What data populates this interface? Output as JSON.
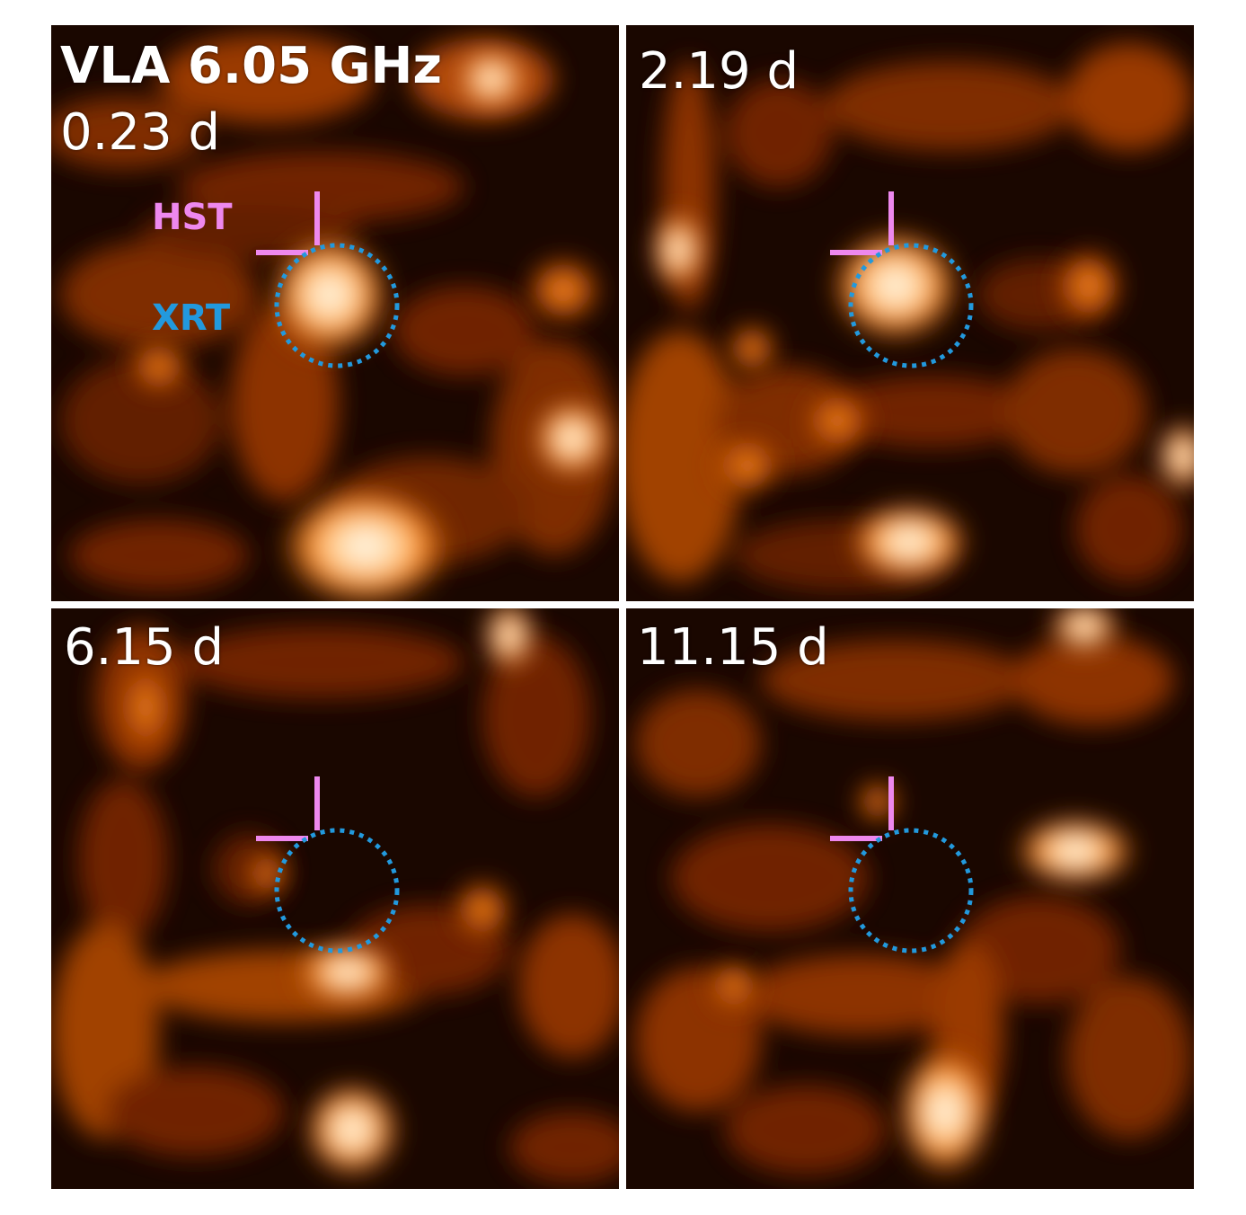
{
  "figure": {
    "instrument_label": "VLA 6.05 GHz",
    "marker_labels": {
      "hst": "HST",
      "xrt": "XRT"
    },
    "colors": {
      "hst": "#ee88ee",
      "xrt": "#2299dd",
      "text": "#ffffff",
      "divider": "#ffffff"
    },
    "colormap": "black-to-orange-to-white (afmhot-like)",
    "panels": [
      {
        "epoch": "0.23 d"
      },
      {
        "epoch": "2.19 d"
      },
      {
        "epoch": "6.15 d"
      },
      {
        "epoch": "11.15 d"
      }
    ]
  }
}
